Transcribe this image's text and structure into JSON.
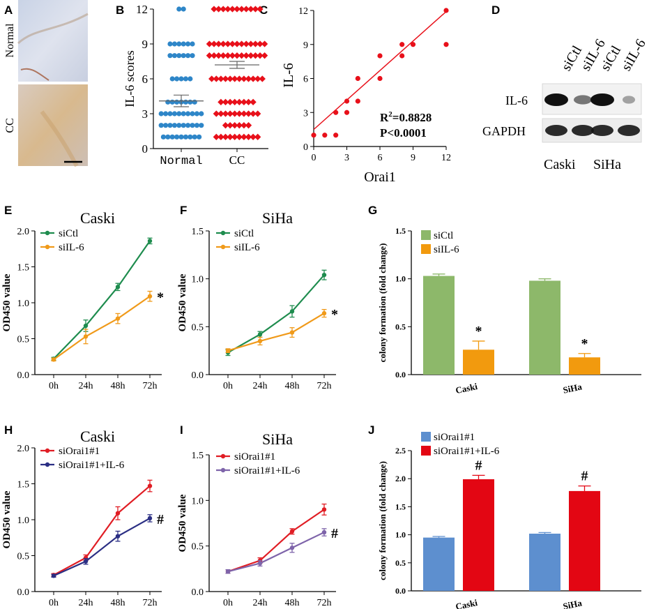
{
  "chart_data": [
    {
      "panel": "A",
      "type": "image",
      "labels": [
        "Normal",
        "CC"
      ]
    },
    {
      "panel": "B",
      "type": "scatter",
      "ylabel": "IL-6 scores",
      "ylim": [
        0,
        12
      ],
      "yticks": [
        0,
        3,
        6,
        9,
        12
      ],
      "categories": [
        "Normal",
        "CC"
      ],
      "colors": [
        "#2e86c8",
        "#e8101a"
      ],
      "groups": [
        {
          "name": "Normal",
          "mean": 4.1,
          "sem": 0.5,
          "points": [
            [
              12,
              2
            ],
            [
              9,
              6
            ],
            [
              8,
              6
            ],
            [
              6,
              5
            ],
            [
              4,
              7
            ],
            [
              3,
              10
            ],
            [
              2,
              10
            ],
            [
              1,
              9
            ]
          ]
        },
        {
          "name": "CC",
          "mean": 7.2,
          "sem": 0.3,
          "points": [
            [
              12,
              11
            ],
            [
              9,
              13
            ],
            [
              8,
              13
            ],
            [
              6,
              12
            ],
            [
              4,
              8
            ],
            [
              3,
              10
            ],
            [
              2,
              6
            ],
            [
              1,
              10
            ]
          ]
        }
      ]
    },
    {
      "panel": "C",
      "type": "scatter",
      "xlabel": "Orai1",
      "ylabel": "IL-6",
      "xlim": [
        0,
        12
      ],
      "ylim": [
        0,
        12
      ],
      "xticks": [
        0,
        3,
        6,
        9,
        12
      ],
      "yticks": [
        0,
        3,
        6,
        9,
        12
      ],
      "points": [
        [
          0,
          1
        ],
        [
          1,
          1
        ],
        [
          2,
          1
        ],
        [
          2,
          3
        ],
        [
          3,
          3
        ],
        [
          3,
          4
        ],
        [
          4,
          4
        ],
        [
          4,
          6
        ],
        [
          6,
          6
        ],
        [
          6,
          8
        ],
        [
          8,
          8
        ],
        [
          8,
          9
        ],
        [
          9,
          9
        ],
        [
          12,
          9
        ],
        [
          12,
          12
        ]
      ],
      "fit_line": [
        [
          0,
          1.5
        ],
        [
          12,
          11.9
        ]
      ],
      "annotation": {
        "r2_base": "R",
        "r2_sup": "2",
        "r2_value": "=0.8828",
        "p": "P<0.0001"
      },
      "color": "#e8101a"
    },
    {
      "panel": "D",
      "type": "western-blot",
      "lanes": [
        "siCtl",
        "siIL-6",
        "siCtl",
        "siIL-6"
      ],
      "rows": [
        "IL-6",
        "GAPDH"
      ],
      "cells": [
        "Caski",
        "SiHa"
      ],
      "il6_intensity": [
        1.0,
        0.4,
        1.0,
        0.15
      ],
      "gapdh_intensity": [
        1.0,
        1.0,
        1.0,
        1.0
      ]
    },
    {
      "panel": "E",
      "type": "line",
      "title": "Caski",
      "categories": [
        "0h",
        "24h",
        "48h",
        "72h"
      ],
      "ylabel": "OD450 value",
      "ylim": [
        0,
        2.0
      ],
      "yticks": [
        "0.0",
        "0.5",
        "1.0",
        "1.5",
        "2.0"
      ],
      "series": [
        {
          "name": "siCtl",
          "color": "#1e8c4e",
          "values": [
            0.22,
            0.68,
            1.22,
            1.86
          ],
          "errors": [
            0.02,
            0.08,
            0.05,
            0.04
          ]
        },
        {
          "name": "siIL-6",
          "color": "#f09a1a",
          "values": [
            0.21,
            0.53,
            0.78,
            1.09
          ],
          "errors": [
            0.02,
            0.1,
            0.07,
            0.07
          ]
        }
      ],
      "marker": "*"
    },
    {
      "panel": "F",
      "type": "line",
      "title": "SiHa",
      "categories": [
        "0h",
        "24h",
        "48h",
        "72h"
      ],
      "ylabel": "OD450 value",
      "ylim": [
        0,
        1.5
      ],
      "yticks": [
        "0.0",
        "0.5",
        "1.0",
        "1.5"
      ],
      "series": [
        {
          "name": "siCtl",
          "color": "#1e8c4e",
          "values": [
            0.23,
            0.42,
            0.66,
            1.04
          ],
          "errors": [
            0.03,
            0.03,
            0.06,
            0.05
          ]
        },
        {
          "name": "siIL-6",
          "color": "#f09a1a",
          "values": [
            0.25,
            0.35,
            0.44,
            0.64
          ],
          "errors": [
            0.02,
            0.04,
            0.05,
            0.04
          ]
        }
      ],
      "marker": "*"
    },
    {
      "panel": "G",
      "type": "bar",
      "categories": [
        "Caski",
        "SiHa"
      ],
      "ylabel": "colony formation (fold change)",
      "ylim": [
        0,
        1.5
      ],
      "yticks": [
        "0.0",
        "0.5",
        "1.0",
        "1.5"
      ],
      "series": [
        {
          "name": "siCtl",
          "color": "#8db86a",
          "values": [
            1.03,
            0.98
          ],
          "errors": [
            0.02,
            0.02
          ]
        },
        {
          "name": "siIL-6",
          "color": "#f29a0e",
          "values": [
            0.26,
            0.18
          ],
          "errors": [
            0.09,
            0.04
          ]
        }
      ],
      "marker": "*"
    },
    {
      "panel": "H",
      "type": "line",
      "title": "Caski",
      "categories": [
        "0h",
        "24h",
        "48h",
        "72h"
      ],
      "ylabel": "OD450 value",
      "ylim": [
        0,
        2.0
      ],
      "yticks": [
        "0.0",
        "0.5",
        "1.0",
        "1.5",
        "2.0"
      ],
      "series": [
        {
          "name": "siOrai1#1",
          "color": "#e01d24",
          "values": [
            0.23,
            0.47,
            1.09,
            1.47
          ],
          "errors": [
            0.02,
            0.04,
            0.09,
            0.08
          ]
        },
        {
          "name": "siOrai1#1+IL-6",
          "color": "#2b2f84",
          "values": [
            0.22,
            0.42,
            0.77,
            1.02
          ],
          "errors": [
            0.02,
            0.04,
            0.07,
            0.05
          ]
        }
      ],
      "marker": "#"
    },
    {
      "panel": "I",
      "type": "line",
      "title": "SiHa",
      "categories": [
        "0h",
        "24h",
        "48h",
        "72h"
      ],
      "ylabel": "OD450 value",
      "ylim": [
        0,
        1.5
      ],
      "yticks": [
        "0.0",
        "0.5",
        "1.0",
        "1.5"
      ],
      "series": [
        {
          "name": "siOrai1#1",
          "color": "#e01d24",
          "values": [
            0.22,
            0.34,
            0.66,
            0.9
          ],
          "errors": [
            0.02,
            0.03,
            0.03,
            0.06
          ]
        },
        {
          "name": "siOrai1#1+IL-6",
          "color": "#7e64aa",
          "values": [
            0.22,
            0.31,
            0.48,
            0.65
          ],
          "errors": [
            0.02,
            0.03,
            0.05,
            0.04
          ]
        }
      ],
      "marker": "#"
    },
    {
      "panel": "J",
      "type": "bar",
      "categories": [
        "Caski",
        "SiHa"
      ],
      "ylabel": "colony formation (fold change)",
      "ylim": [
        0,
        2.5
      ],
      "yticks": [
        "0.0",
        "0.5",
        "1.0",
        "1.5",
        "2.0",
        "2.5"
      ],
      "series": [
        {
          "name": "siOrai1#1",
          "color": "#5d8fcf",
          "values": [
            0.95,
            1.02
          ],
          "errors": [
            0.02,
            0.02
          ]
        },
        {
          "name": "siOrai1#1+IL-6",
          "color": "#e30613",
          "values": [
            1.99,
            1.78
          ],
          "errors": [
            0.07,
            0.09
          ]
        }
      ],
      "marker": "#"
    }
  ]
}
